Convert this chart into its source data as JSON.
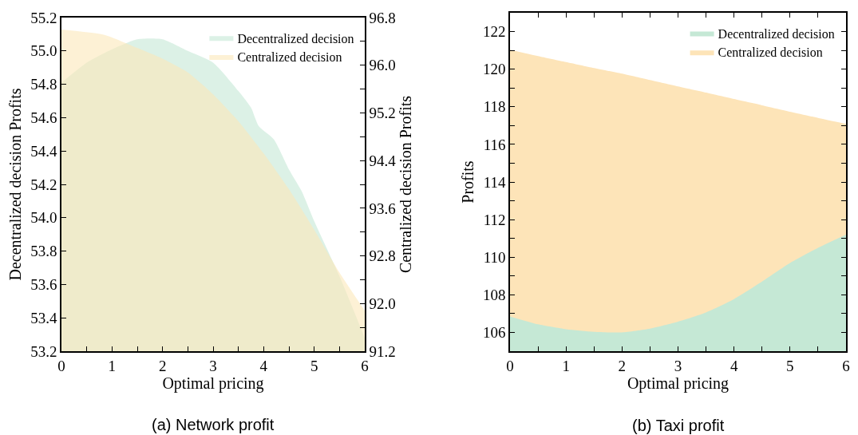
{
  "chart_data": [
    {
      "type": "area",
      "title": "(a) Network profit",
      "xlabel": "Optimal pricing",
      "ylabel": "Decentralized decision Profits",
      "y2label": "Centralized decision Profits",
      "xlim": [
        0,
        6
      ],
      "xticks": [
        0,
        {
          "value": 0.5,
          "label": null
        },
        1,
        {
          "value": 1.5,
          "label": null
        },
        2,
        {
          "value": 2.5,
          "label": null
        },
        3,
        {
          "value": 3.5,
          "label": null
        },
        4,
        {
          "value": 4.5,
          "label": null
        },
        5,
        {
          "value": 5.5,
          "label": null
        },
        6
      ],
      "ylim": [
        53.2,
        55.2
      ],
      "yticks": [
        53.2,
        53.4,
        53.6,
        53.8,
        {
          "value": 54,
          "label": "54.0"
        },
        54.2,
        54.4,
        54.6,
        54.8,
        {
          "value": 55,
          "label": "55.0"
        },
        55.2
      ],
      "y2lim": [
        91.2,
        96.8
      ],
      "y2ticks": [
        91.2,
        {
          "value": 91.6,
          "label": null
        },
        {
          "value": 92,
          "label": "92.0"
        },
        {
          "value": 92.4,
          "label": null
        },
        92.8,
        {
          "value": 93.2,
          "label": null
        },
        93.6,
        {
          "value": 94,
          "label": null
        },
        94.4,
        {
          "value": 94.8,
          "label": null
        },
        95.2,
        {
          "value": 95.6,
          "label": null
        },
        {
          "value": 96,
          "label": "96.0"
        },
        {
          "value": 96.4,
          "label": null
        },
        96.8
      ],
      "x": [
        0,
        0.5,
        1,
        1.5,
        2,
        2.5,
        3,
        3.5,
        3.75,
        3.9,
        4.2,
        4.5,
        4.75,
        5,
        5.5,
        6
      ],
      "series": [
        {
          "name": "Decentralized decision",
          "color": "#c5e8d5",
          "values": [
            54.81,
            54.93,
            55.01,
            55.07,
            55.07,
            55.0,
            54.93,
            54.76,
            54.66,
            54.55,
            54.47,
            54.29,
            54.16,
            53.98,
            53.65,
            53.28
          ]
        },
        {
          "name": "Centralized decision",
          "color": "#fbe7b9",
          "axis": "y2",
          "x": [
            0,
            0.85,
            1.5,
            2,
            2.5,
            3,
            3.5,
            4,
            4.5,
            5,
            5.5,
            6
          ],
          "values": [
            96.6,
            96.51,
            96.29,
            96.11,
            95.88,
            95.51,
            95.06,
            94.52,
            93.92,
            93.24,
            92.52,
            91.88
          ]
        }
      ],
      "grid": false,
      "legend": "top right",
      "marker": "none"
    },
    {
      "type": "area",
      "title": "(b) Taxi profit",
      "xlabel": "Optimal pricing",
      "ylabel": "Profits",
      "xlim": [
        0,
        6
      ],
      "xticks": [
        0,
        {
          "value": 0.5,
          "label": null
        },
        1,
        {
          "value": 1.5,
          "label": null
        },
        2,
        {
          "value": 2.5,
          "label": null
        },
        3,
        {
          "value": 3.5,
          "label": null
        },
        4,
        {
          "value": 4.5,
          "label": null
        },
        5,
        {
          "value": 5.5,
          "label": null
        },
        6
      ],
      "ylim": [
        105,
        123
      ],
      "yticks": [
        106,
        {
          "value": 107,
          "label": null
        },
        108,
        {
          "value": 109,
          "label": null
        },
        110,
        {
          "value": 111,
          "label": null
        },
        112,
        {
          "value": 113,
          "label": null
        },
        114,
        {
          "value": 115,
          "label": null
        },
        116,
        {
          "value": 117,
          "label": null
        },
        118,
        {
          "value": 119,
          "label": null
        },
        120,
        {
          "value": 121,
          "label": null
        },
        122
      ],
      "x": [
        0,
        0.5,
        1,
        1.5,
        2,
        2.5,
        3,
        3.5,
        4,
        4.5,
        5,
        5.5,
        6
      ],
      "series": [
        {
          "name": "Decentralized decision",
          "color": "#c5e8d5",
          "values": [
            106.85,
            106.43,
            106.17,
            106.03,
            106.0,
            106.2,
            106.57,
            107.06,
            107.77,
            108.7,
            109.69,
            110.5,
            111.2
          ]
        },
        {
          "name": "Centralized decision",
          "color": "#fde4b8",
          "values": [
            121.04,
            120.7,
            120.38,
            120.06,
            119.76,
            119.42,
            119.08,
            118.75,
            118.41,
            118.08,
            117.74,
            117.41,
            117.09
          ]
        }
      ],
      "grid": false,
      "legend": "top right",
      "marker": "none"
    }
  ]
}
